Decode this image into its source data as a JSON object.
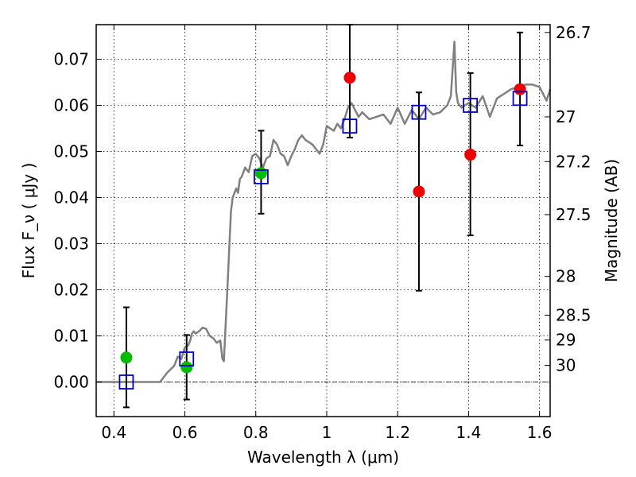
{
  "chart_data": {
    "type": "scatter",
    "xlabel": "Wavelength  λ (μm)",
    "ylabel": "Flux  F_ν  ( μJy )",
    "y2label": "Magnitude (AB)",
    "xlim": [
      0.35,
      1.63
    ],
    "ylim": [
      -0.0075,
      0.0775
    ],
    "xticks": [
      "0.4",
      "0.6",
      "0.8",
      "1",
      "1.2",
      "1.4",
      "1.6"
    ],
    "yticks": [
      "0.00",
      "0.01",
      "0.02",
      "0.03",
      "0.04",
      "0.05",
      "0.06",
      "0.07"
    ],
    "mag_ticks": [
      {
        "label": "26.7",
        "flux": 0.0758
      },
      {
        "label": "27",
        "flux": 0.0575
      },
      {
        "label": "27.2",
        "flux": 0.0478
      },
      {
        "label": "27.5",
        "flux": 0.0363
      },
      {
        "label": "28",
        "flux": 0.0229
      },
      {
        "label": "28.5",
        "flux": 0.0145
      },
      {
        "label": "29",
        "flux": 0.0091
      },
      {
        "label": "30",
        "flux": 0.0036
      }
    ],
    "grid": true,
    "model_spectrum": {
      "color": "#808080",
      "x": [
        0.35,
        0.53,
        0.55,
        0.57,
        0.58,
        0.59,
        0.6,
        0.61,
        0.615,
        0.62,
        0.625,
        0.63,
        0.64,
        0.65,
        0.66,
        0.67,
        0.68,
        0.69,
        0.7,
        0.706,
        0.71,
        0.72,
        0.73,
        0.735,
        0.745,
        0.75,
        0.755,
        0.76,
        0.77,
        0.78,
        0.79,
        0.8,
        0.81,
        0.82,
        0.83,
        0.84,
        0.85,
        0.86,
        0.87,
        0.88,
        0.89,
        0.9,
        0.91,
        0.92,
        0.93,
        0.94,
        0.95,
        0.96,
        0.97,
        0.98,
        0.99,
        1.0,
        1.01,
        1.02,
        1.03,
        1.04,
        1.05,
        1.06,
        1.07,
        1.08,
        1.09,
        1.1,
        1.12,
        1.14,
        1.16,
        1.18,
        1.2,
        1.22,
        1.24,
        1.26,
        1.28,
        1.3,
        1.32,
        1.34,
        1.35,
        1.36,
        1.365,
        1.37,
        1.38,
        1.4,
        1.42,
        1.44,
        1.46,
        1.48,
        1.5,
        1.52,
        1.54,
        1.56,
        1.58,
        1.6,
        1.61,
        1.62,
        1.63
      ],
      "y": [
        0.0,
        0.0,
        0.002,
        0.0035,
        0.0055,
        0.005,
        0.0075,
        0.008,
        0.009,
        0.0105,
        0.011,
        0.0105,
        0.011,
        0.0118,
        0.0115,
        0.01,
        0.0095,
        0.0085,
        0.009,
        0.005,
        0.0045,
        0.0205,
        0.037,
        0.04,
        0.042,
        0.041,
        0.044,
        0.0445,
        0.0465,
        0.0455,
        0.049,
        0.0495,
        0.0485,
        0.0465,
        0.0485,
        0.049,
        0.0525,
        0.0515,
        0.0495,
        0.049,
        0.047,
        0.049,
        0.0505,
        0.0525,
        0.0535,
        0.0525,
        0.052,
        0.0515,
        0.0505,
        0.0495,
        0.0515,
        0.0555,
        0.055,
        0.0545,
        0.056,
        0.055,
        0.057,
        0.0595,
        0.0605,
        0.059,
        0.0575,
        0.0585,
        0.057,
        0.0575,
        0.058,
        0.056,
        0.0595,
        0.056,
        0.059,
        0.057,
        0.0595,
        0.058,
        0.0585,
        0.06,
        0.062,
        0.0738,
        0.063,
        0.0605,
        0.0595,
        0.0605,
        0.0595,
        0.062,
        0.0575,
        0.0615,
        0.0625,
        0.0635,
        0.064,
        0.0645,
        0.0645,
        0.064,
        0.0625,
        0.061,
        0.0635
      ]
    },
    "series": [
      {
        "marker": "circle",
        "color": "#00bb00",
        "points": [
          {
            "x": 0.435,
            "y": 0.0053
          },
          {
            "x": 0.605,
            "y": 0.0032
          },
          {
            "x": 0.815,
            "y": 0.0453
          }
        ]
      },
      {
        "marker": "circle",
        "color": "#ee0000",
        "points": [
          {
            "x": 1.065,
            "y": 0.066
          },
          {
            "x": 1.26,
            "y": 0.0413
          },
          {
            "x": 1.405,
            "y": 0.0493
          },
          {
            "x": 1.545,
            "y": 0.0635
          }
        ]
      },
      {
        "marker": "square",
        "color": "#0000cc",
        "points": [
          {
            "x": 0.435,
            "y": 0.0
          },
          {
            "x": 0.605,
            "y": 0.005
          },
          {
            "x": 0.815,
            "y": 0.0445
          },
          {
            "x": 1.065,
            "y": 0.0555
          },
          {
            "x": 1.26,
            "y": 0.0585
          },
          {
            "x": 1.405,
            "y": 0.06
          },
          {
            "x": 1.545,
            "y": 0.0615
          }
        ]
      }
    ],
    "errorbars": [
      {
        "x": 0.435,
        "lo": -0.0055,
        "hi": 0.0162
      },
      {
        "x": 0.605,
        "lo": -0.0038,
        "hi": 0.0102
      },
      {
        "x": 0.815,
        "lo": 0.0365,
        "hi": 0.0545
      },
      {
        "x": 1.065,
        "lo": 0.053,
        "hi": 0.0775
      },
      {
        "x": 1.26,
        "lo": 0.0198,
        "hi": 0.0628
      },
      {
        "x": 1.405,
        "lo": 0.0318,
        "hi": 0.067
      },
      {
        "x": 1.545,
        "lo": 0.0513,
        "hi": 0.0758
      }
    ]
  }
}
